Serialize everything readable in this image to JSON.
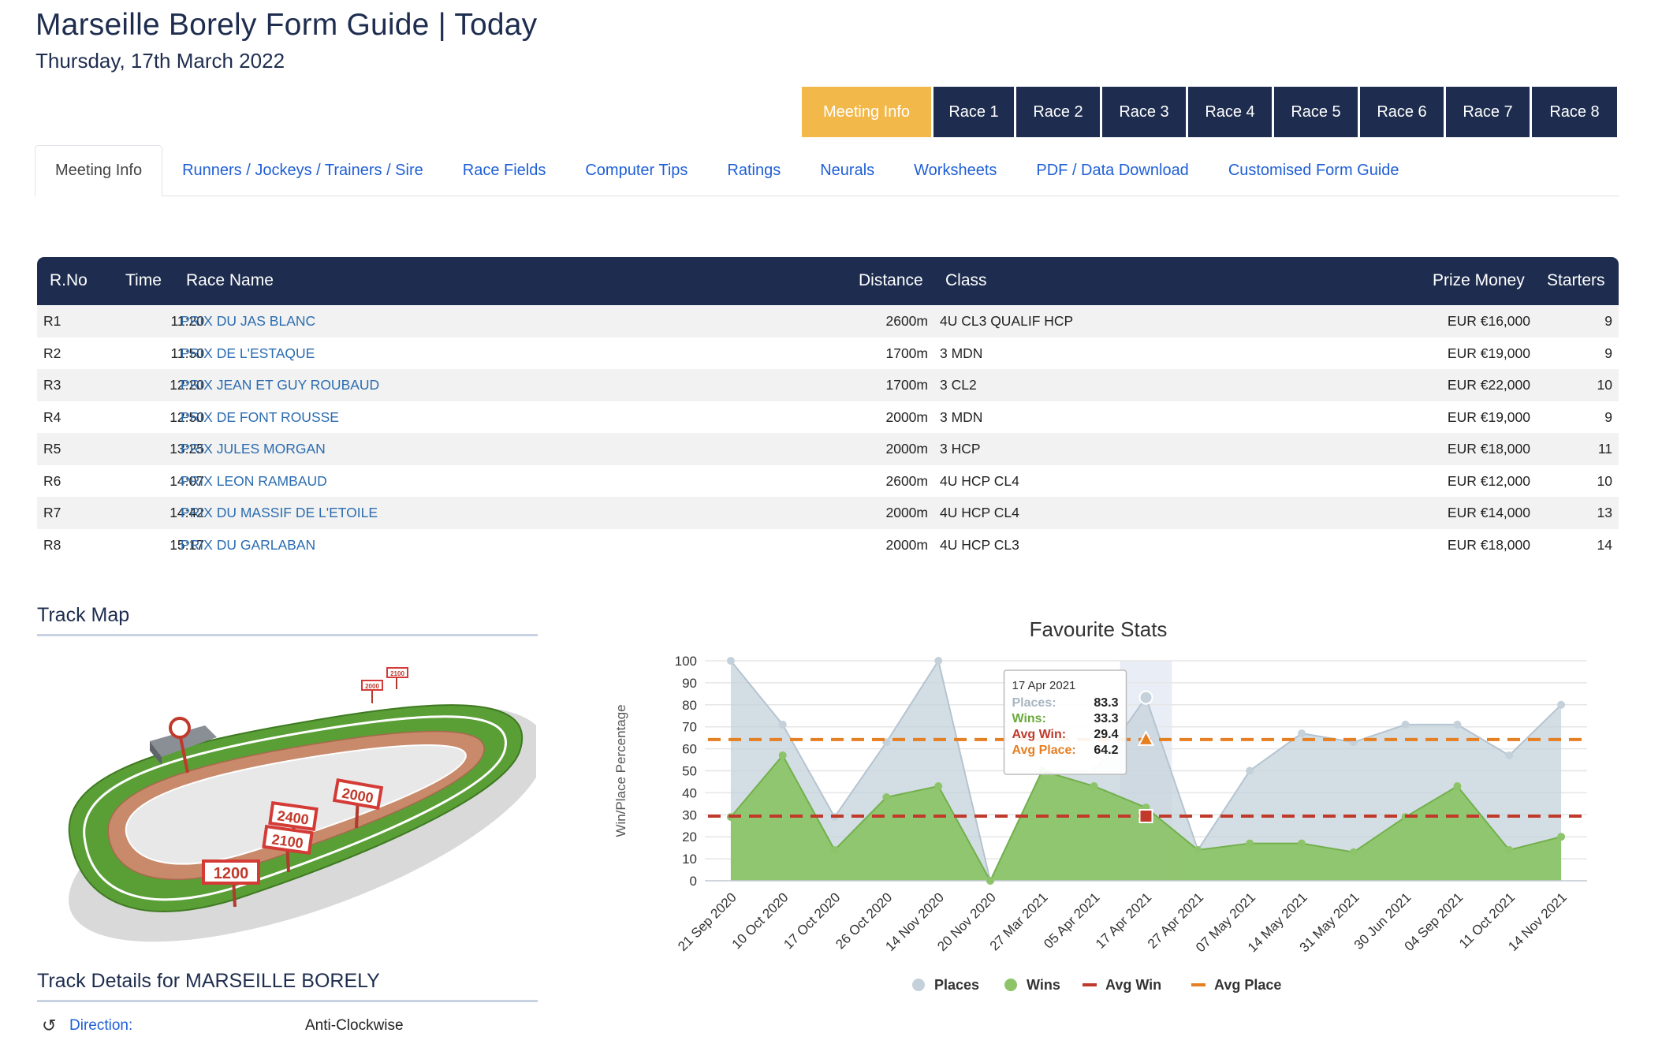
{
  "header": {
    "title": "Marseille Borely Form Guide | Today",
    "date": "Thursday, 17th March 2022"
  },
  "race_tabs": [
    "Meeting Info",
    "Race 1",
    "Race 2",
    "Race 3",
    "Race 4",
    "Race 5",
    "Race 6",
    "Race 7",
    "Race 8"
  ],
  "active_race_tab": "Meeting Info",
  "nav_tabs": [
    "Meeting Info",
    "Runners / Jockeys / Trainers / Sire",
    "Race Fields",
    "Computer Tips",
    "Ratings",
    "Neurals",
    "Worksheets",
    "PDF / Data Download",
    "Customised Form Guide"
  ],
  "active_nav_tab": "Meeting Info",
  "races_table": {
    "columns": {
      "rno": "R.No",
      "time": "Time",
      "name": "Race Name",
      "distance": "Distance",
      "class": "Class",
      "prize": "Prize Money",
      "starters": "Starters"
    },
    "rows": [
      {
        "rno": "R1",
        "time": "11:20",
        "name": "PRIX DU JAS BLANC",
        "distance": "2600m",
        "class": "4U CL3 QUALIF HCP",
        "prize": "EUR €16,000",
        "starters": "9"
      },
      {
        "rno": "R2",
        "time": "11:50",
        "name": "PRIX DE L'ESTAQUE",
        "distance": "1700m",
        "class": "3 MDN",
        "prize": "EUR €19,000",
        "starters": "9"
      },
      {
        "rno": "R3",
        "time": "12:20",
        "name": "PRIX JEAN ET GUY ROUBAUD",
        "distance": "1700m",
        "class": "3 CL2",
        "prize": "EUR €22,000",
        "starters": "10"
      },
      {
        "rno": "R4",
        "time": "12:50",
        "name": "PRIX DE FONT ROUSSE",
        "distance": "2000m",
        "class": "3 MDN",
        "prize": "EUR €19,000",
        "starters": "9"
      },
      {
        "rno": "R5",
        "time": "13:25",
        "name": "PRIX JULES MORGAN",
        "distance": "2000m",
        "class": "3 HCP",
        "prize": "EUR €18,000",
        "starters": "11"
      },
      {
        "rno": "R6",
        "time": "14:07",
        "name": "PRIX LEON RAMBAUD",
        "distance": "2600m",
        "class": "4U HCP CL4",
        "prize": "EUR €12,000",
        "starters": "10"
      },
      {
        "rno": "R7",
        "time": "14:42",
        "name": "PRIX DU MASSIF DE L'ETOILE",
        "distance": "2000m",
        "class": "4U HCP CL4",
        "prize": "EUR €14,000",
        "starters": "13"
      },
      {
        "rno": "R8",
        "time": "15:17",
        "name": "PRIX DU GARLABAN",
        "distance": "2000m",
        "class": "4U HCP CL3",
        "prize": "EUR €18,000",
        "starters": "14"
      }
    ]
  },
  "track_map": {
    "heading": "Track Map",
    "distance_signs": [
      "1200",
      "2400",
      "2100",
      "2000",
      "2000",
      "2100"
    ],
    "colors": {
      "turf": "#5a9e36",
      "track": "#c98a6c",
      "sign": "#d43b36"
    }
  },
  "track_details": {
    "heading": "Track Details for MARSEILLE BORELY",
    "direction_label": "Direction:",
    "direction_value": "Anti-Clockwise",
    "direction_icon": "rotate-ccw-icon"
  },
  "chart_data": {
    "type": "area",
    "title": "Favourite Stats",
    "ylabel": "Win/Place Percentage",
    "ylim": [
      0,
      100
    ],
    "yticks": [
      0,
      10,
      20,
      30,
      40,
      50,
      60,
      70,
      80,
      90,
      100
    ],
    "categories": [
      "21 Sep 2020",
      "10 Oct 2020",
      "17 Oct 2020",
      "26 Oct 2020",
      "14 Nov 2020",
      "20 Nov 2020",
      "27 Mar 2021",
      "05 Apr 2021",
      "17 Apr 2021",
      "27 Apr 2021",
      "07 May 2021",
      "14 May 2021",
      "31 May 2021",
      "30 Jun 2021",
      "04 Sep 2021",
      "11 Oct 2021",
      "14 Nov 2021"
    ],
    "series": [
      {
        "name": "Places",
        "values": [
          100,
          71,
          29,
          63,
          100,
          0,
          50,
          50,
          83.3,
          14,
          50,
          67,
          63,
          71,
          71,
          57,
          80
        ],
        "color": "#c4d1db"
      },
      {
        "name": "Wins",
        "values": [
          29,
          57,
          14,
          38,
          43,
          0,
          50,
          43,
          33.3,
          14,
          17,
          17,
          13,
          29,
          43,
          14,
          20
        ],
        "color": "#8dc46a"
      }
    ],
    "reference_lines": [
      {
        "name": "Avg Win",
        "value": 29.4,
        "color": "#c0392b"
      },
      {
        "name": "Avg Place",
        "value": 64.2,
        "color": "#e67e22"
      }
    ],
    "tooltip": {
      "date": "17 Apr 2021",
      "places_label": "Places:",
      "places_value": "83.3",
      "wins_label": "Wins:",
      "wins_value": "33.3",
      "avg_win_label": "Avg Win:",
      "avg_win_value": "29.4",
      "avg_place_label": "Avg Place:",
      "avg_place_value": "64.2"
    },
    "highlighted_category": "17 Apr 2021",
    "grid": true,
    "legend_position": "bottom"
  }
}
